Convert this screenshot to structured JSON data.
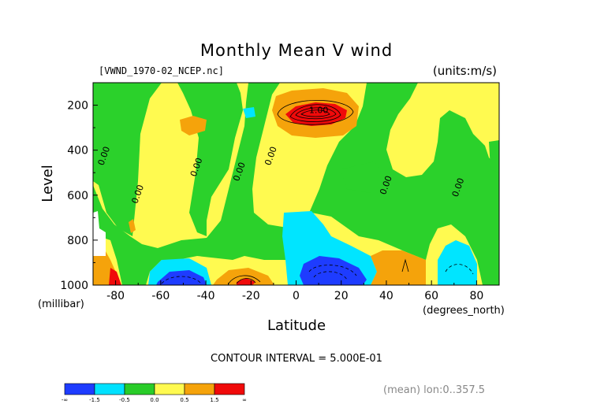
{
  "chart_data": {
    "type": "heatmap",
    "title": "Monthly Mean V wind",
    "file_label": "[VWND_1970-02_NCEP.nc]",
    "units_label": "(units:m/s)",
    "xlabel": "Latitude",
    "x_unit_label": "(degrees_north)",
    "ylabel": "Level",
    "y_unit_label": "(millibar)",
    "xlim": [
      -90,
      90
    ],
    "ylim": [
      1000,
      100
    ],
    "x_ticks": [
      "-80",
      "-60",
      "-40",
      "-20",
      "0",
      "20",
      "40",
      "60",
      "80"
    ],
    "x_tick_values": [
      -80,
      -60,
      -40,
      -20,
      0,
      20,
      40,
      60,
      80
    ],
    "y_ticks": [
      "200",
      "400",
      "600",
      "800",
      "1000"
    ],
    "y_tick_values": [
      200,
      400,
      600,
      800,
      1000
    ],
    "contour_interval_text": "CONTOUR INTERVAL = 5.000E-01",
    "footer_text": "(mean) lon:0..357.5",
    "contour_labels": [
      {
        "text": "0.00",
        "lat": -84,
        "lev": 430
      },
      {
        "text": "0.00",
        "lat": -69,
        "lev": 600
      },
      {
        "text": "0.00",
        "lat": -43,
        "lev": 480
      },
      {
        "text": "0.00",
        "lat": -24,
        "lev": 500
      },
      {
        "text": "0.00",
        "lat": -10,
        "lev": 430
      },
      {
        "text": "1.00",
        "lat": 10,
        "lev": 235
      },
      {
        "text": "0.00",
        "lat": 41,
        "lev": 560
      },
      {
        "text": "0.00",
        "lat": 73,
        "lev": 570
      }
    ],
    "colorbar": {
      "levels": [
        "-1.5",
        "-0.5",
        "0.0",
        "0.5",
        "1.5"
      ],
      "end_labels": [
        "-∞",
        "∞"
      ],
      "colors": [
        "#1e3cff",
        "#00e1ff",
        "#29cc29",
        "#fffa50",
        "#f5a30b",
        "#f00a0a"
      ]
    },
    "regions": [
      {
        "level_class": "yellow",
        "color": "#fffa50"
      },
      {
        "level_class": "green",
        "color": "#2bd12b"
      },
      {
        "level_class": "cyan",
        "color": "#00e5ff"
      },
      {
        "level_class": "blue",
        "color": "#1e3cff"
      },
      {
        "level_class": "orange",
        "color": "#f5a30b"
      },
      {
        "level_class": "red",
        "color": "#f00a0a"
      }
    ]
  }
}
